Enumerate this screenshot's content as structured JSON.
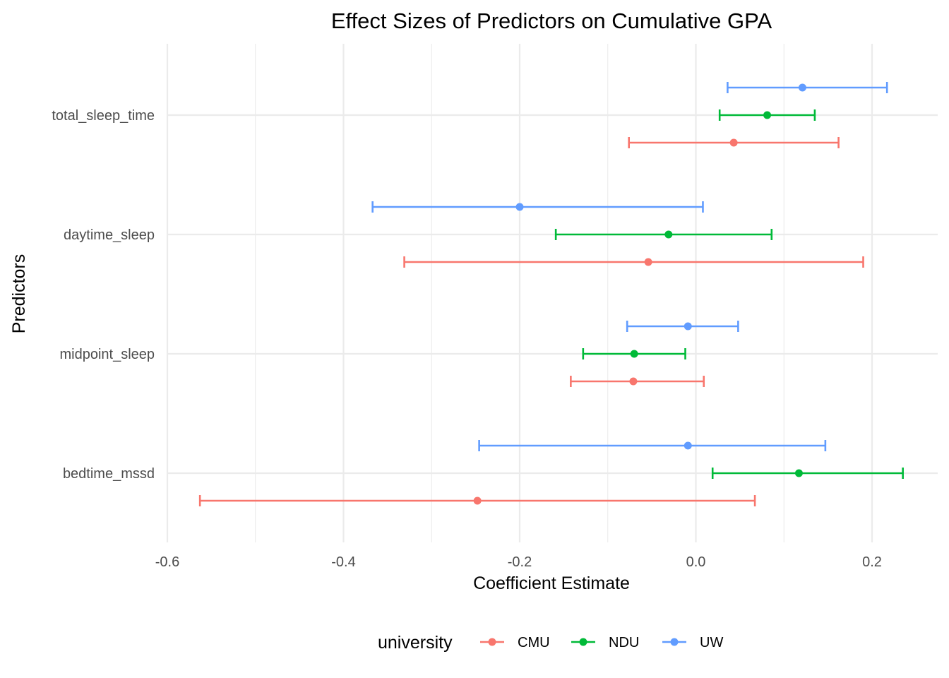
{
  "chart_data": {
    "type": "scatter",
    "subtype": "point-range (coefficient plot with error bars)",
    "title": "Effect Sizes of Predictors on Cumulative GPA",
    "xlabel": "Coefficient Estimate",
    "ylabel": "Predictors",
    "xlim": [
      -0.6,
      0.275
    ],
    "x_ticks": [
      -0.6,
      -0.4,
      -0.2,
      0.0,
      0.2
    ],
    "x_tick_labels": [
      "-0.6",
      "-0.4",
      "-0.2",
      "0.0",
      "0.2"
    ],
    "categories": [
      "bedtime_mssd",
      "midpoint_sleep",
      "daytime_sleep",
      "total_sleep_time"
    ],
    "grid": true,
    "legend": {
      "title": "university",
      "position": "bottom"
    },
    "series": [
      {
        "name": "CMU",
        "color": "#F8766D",
        "points": [
          {
            "predictor": "bedtime_mssd",
            "estimate": -0.248,
            "lower": -0.563,
            "upper": 0.067
          },
          {
            "predictor": "midpoint_sleep",
            "estimate": -0.071,
            "lower": -0.142,
            "upper": 0.009
          },
          {
            "predictor": "daytime_sleep",
            "estimate": -0.054,
            "lower": -0.331,
            "upper": 0.19
          },
          {
            "predictor": "total_sleep_time",
            "estimate": 0.043,
            "lower": -0.076,
            "upper": 0.162
          }
        ]
      },
      {
        "name": "NDU",
        "color": "#00BA38",
        "points": [
          {
            "predictor": "bedtime_mssd",
            "estimate": 0.117,
            "lower": 0.019,
            "upper": 0.235
          },
          {
            "predictor": "midpoint_sleep",
            "estimate": -0.07,
            "lower": -0.128,
            "upper": -0.012
          },
          {
            "predictor": "daytime_sleep",
            "estimate": -0.031,
            "lower": -0.159,
            "upper": 0.086
          },
          {
            "predictor": "total_sleep_time",
            "estimate": 0.081,
            "lower": 0.027,
            "upper": 0.135
          }
        ]
      },
      {
        "name": "UW",
        "color": "#619CFF",
        "points": [
          {
            "predictor": "bedtime_mssd",
            "estimate": -0.009,
            "lower": -0.246,
            "upper": 0.147
          },
          {
            "predictor": "midpoint_sleep",
            "estimate": -0.009,
            "lower": -0.078,
            "upper": 0.048
          },
          {
            "predictor": "daytime_sleep",
            "estimate": -0.2,
            "lower": -0.367,
            "upper": 0.008
          },
          {
            "predictor": "total_sleep_time",
            "estimate": 0.121,
            "lower": 0.036,
            "upper": 0.217
          }
        ]
      }
    ]
  }
}
